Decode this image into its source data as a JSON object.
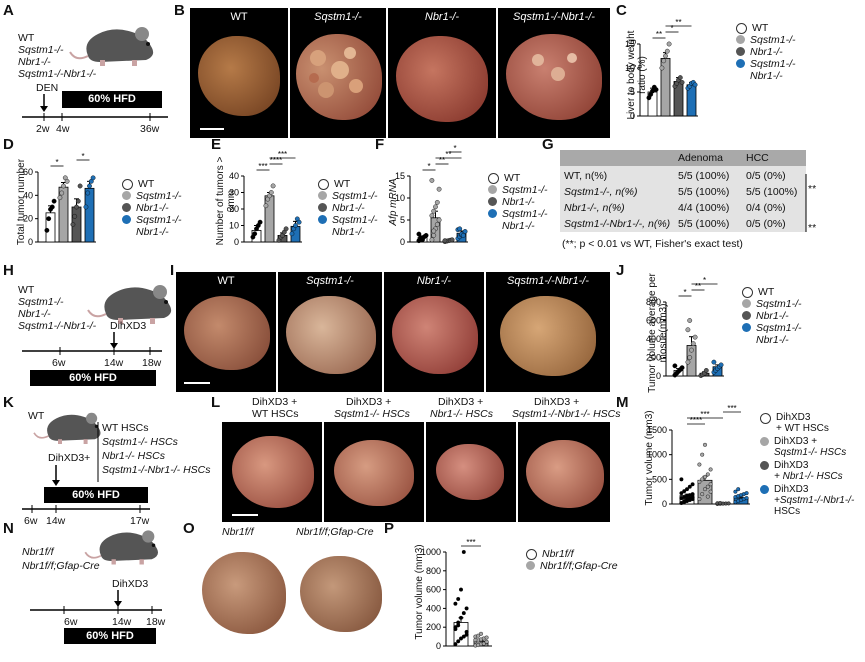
{
  "panel_labels": [
    "A",
    "B",
    "C",
    "D",
    "E",
    "F",
    "G",
    "H",
    "I",
    "J",
    "K",
    "L",
    "M",
    "N",
    "O",
    "P"
  ],
  "colors": {
    "wt": "#ffffff",
    "sqstm1": "#a6a6a6",
    "nbr1": "#555555",
    "dko": "#1e6fb5",
    "table_header": "#a9a9a9",
    "table_body": "#e3e3e3"
  },
  "genotypes": [
    "WT",
    "Sqstm1",
    "Nbr1",
    "Sqstm1Nbr1"
  ],
  "A": {
    "labels": [
      "WT",
      "Sqstm1-/-",
      "Nbr1-/-",
      "Sqstm1-/-Nbr1-/-"
    ],
    "treatment": "DEN",
    "diet": "60% HFD",
    "ticks": [
      "2w",
      "4w",
      "36w"
    ]
  },
  "B": {
    "captions": [
      "WT",
      "Sqstm1-/-",
      "Nbr1-/-",
      "Sqstm1-/-Nbr1-/-"
    ]
  },
  "H": {
    "labels": [
      "WT",
      "Sqstm1-/-",
      "Nbr1-/-",
      "Sqstm1-/-Nbr1-/-"
    ],
    "treatment": "DihXD3",
    "diet": "60% HFD",
    "ticks": [
      "6w",
      "14w",
      "18w"
    ]
  },
  "I": {
    "captions": [
      "WT",
      "Sqstm1-/-",
      "Nbr1-/-",
      "Sqstm1-/-Nbr1-/-"
    ]
  },
  "K": {
    "labels": [
      "WT"
    ],
    "injection": "DihXD3+",
    "hscs": [
      "WT HSCs",
      "Sqstm1-/- HSCs",
      "Nbr1-/- HSCs",
      "Sqstm1-/-Nbr1-/- HSCs"
    ],
    "diet": "60% HFD",
    "ticks": [
      "6w",
      "14w",
      "17w"
    ]
  },
  "L": {
    "captions": [
      [
        "DihXD3 +",
        "WT HSCs"
      ],
      [
        "DihXD3 +",
        "Sqstm1-/- HSCs"
      ],
      [
        "DihXD3 +",
        "Nbr1-/- HSCs"
      ],
      [
        "DihXD3 +",
        "Sqstm1-/-Nbr1-/- HSCs"
      ]
    ]
  },
  "N": {
    "labels": [
      "Nbr1f/f",
      "Nbr1f/f;Gfap-Cre"
    ],
    "treatment": "DihXD3",
    "diet": "60% HFD",
    "ticks": [
      "6w",
      "14w",
      "18w"
    ]
  },
  "O": {
    "captions": [
      "Nbr1f/f",
      "Nbr1f/f;Gfap-Cre"
    ]
  },
  "legend_basic": [
    "WT",
    "Sqstm1-/-",
    "Nbr1-/-",
    "Sqstm1-/-",
    "Nbr1-/-"
  ],
  "legend_M": [
    [
      "DihXD3",
      "+ WT HSCs"
    ],
    [
      "DihXD3 +",
      "Sqstm1-/- HSCs"
    ],
    [
      "DihXD3",
      "+ Nbr1-/- HSCs"
    ],
    [
      "DihXD3",
      "+Sqstm1-/-Nbr1-/-",
      "HSCs"
    ]
  ],
  "legend_P": [
    "Nbr1f/f",
    "Nbr1f/f;Gfap-Cre"
  ],
  "G": {
    "columns": [
      "",
      "Adenoma",
      "HCC"
    ],
    "rows": [
      [
        "WT, n(%)",
        "5/5 (100%)",
        "0/5 (0%)"
      ],
      [
        "Sqstm1-/-, n(%)",
        "5/5 (100%)",
        "5/5 (100%)"
      ],
      [
        "Nbr1-/-, n(%)",
        "4/4 (100%)",
        "0/4 (0%)"
      ],
      [
        "Sqstm1-/-Nbr1-/-, n(%)",
        "5/5 (100%)",
        "0/5 (0%)"
      ]
    ],
    "significance": [
      "**",
      "**"
    ],
    "footnote": "(**; p < 0.01 vs WT, Fisher's exact test)"
  },
  "chart_data": [
    {
      "panel": "C",
      "type": "bar",
      "categories": [
        "WT",
        "Sqstm1-/-",
        "Nbr1-/-",
        "Sqstm1-/-Nbr1-/-"
      ],
      "values": [
        5.0,
        12.0,
        7.2,
        6.5
      ],
      "errors": [
        0.8,
        1.2,
        0.8,
        0.5
      ],
      "points": [
        [
          3.8,
          4.5,
          5.2,
          6.0,
          5.5
        ],
        [
          10.0,
          11.5,
          12.5,
          13.5,
          15.0
        ],
        [
          6.2,
          6.8,
          7.5,
          8.0,
          7.0
        ],
        [
          5.8,
          6.2,
          6.8,
          7.0,
          6.5
        ]
      ],
      "ylabel": "Liver to body weight ratio (%)",
      "ylim": [
        0,
        15
      ],
      "yticks": [
        0,
        5,
        10,
        15
      ],
      "sig": [
        {
          "a": 0,
          "b": 1,
          "l": "**"
        },
        {
          "a": 1,
          "b": 2,
          "l": "*"
        },
        {
          "a": 1,
          "b": 3,
          "l": "**"
        }
      ]
    },
    {
      "panel": "D",
      "type": "bar",
      "categories": [
        "WT",
        "Sqstm1-/-",
        "Nbr1-/-",
        "Sqstm1-/-Nbr1-/-"
      ],
      "values": [
        25,
        47,
        30,
        46
      ],
      "errors": [
        6,
        4,
        7,
        6
      ],
      "points": [
        [
          10,
          20,
          28,
          30,
          35
        ],
        [
          38,
          42,
          48,
          55,
          52
        ],
        [
          15,
          22,
          30,
          35,
          48
        ],
        [
          30,
          42,
          48,
          52,
          55
        ]
      ],
      "ylabel": "Total tumor number",
      "ylim": [
        0,
        60
      ],
      "yticks": [
        0,
        20,
        40,
        60
      ],
      "sig": [
        {
          "a": 0,
          "b": 1,
          "l": "*"
        },
        {
          "a": 2,
          "b": 3,
          "l": "*"
        }
      ]
    },
    {
      "panel": "E",
      "type": "bar",
      "categories": [
        "WT",
        "Sqstm1-/-",
        "Nbr1-/-",
        "Sqstm1-/-Nbr1-/-"
      ],
      "values": [
        7,
        28,
        4,
        9.5
      ],
      "errors": [
        3,
        2,
        1.5,
        3
      ],
      "points": [
        [
          3,
          5,
          8,
          10,
          12
        ],
        [
          22,
          26,
          28,
          30,
          34
        ],
        [
          1,
          3,
          4,
          6,
          8
        ],
        [
          5,
          8,
          10,
          14,
          12
        ]
      ],
      "ylabel": "Number of tumors > 3mm",
      "ylim": [
        0,
        40
      ],
      "yticks": [
        0,
        10,
        20,
        30,
        40
      ],
      "sig": [
        {
          "a": 0,
          "b": 1,
          "l": "***"
        },
        {
          "a": 1,
          "b": 2,
          "l": "****"
        },
        {
          "a": 1,
          "b": 3,
          "l": "***"
        }
      ]
    },
    {
      "panel": "F",
      "type": "bar",
      "categories": [
        "WT",
        "Sqstm1-/-",
        "Nbr1-/-",
        "Sqstm1-/-Nbr1-/-"
      ],
      "values": [
        1.0,
        5.5,
        0.3,
        2.0
      ],
      "errors": [
        0.3,
        1.5,
        0.1,
        0.5
      ],
      "points": [
        [
          0.3,
          0.6,
          0.9,
          1.2,
          1.5,
          1.8,
          1.0,
          0.5
        ],
        [
          0.5,
          1.5,
          3,
          4,
          5,
          6,
          7,
          8,
          9,
          12,
          14,
          2.5
        ],
        [
          0.1,
          0.2,
          0.3,
          0.4,
          0.5,
          0.3
        ],
        [
          0.8,
          1.2,
          1.6,
          2.0,
          2.4,
          2.8,
          3.0,
          1.8,
          1.5
        ]
      ],
      "ylabel": "Afp mRNA",
      "ylim": [
        0,
        15
      ],
      "yticks": [
        0,
        5,
        10,
        15
      ],
      "sig": [
        {
          "a": 0,
          "b": 1,
          "l": "*"
        },
        {
          "a": 1,
          "b": 2,
          "l": "**"
        },
        {
          "a": 1,
          "b": 3,
          "l": "**"
        },
        {
          "a": 2,
          "b": 3,
          "l": "*"
        }
      ]
    },
    {
      "panel": "J",
      "type": "bar",
      "categories": [
        "WT",
        "Sqstm1-/-",
        "Nbr1-/-",
        "Sqstm1-/-Nbr1-/-"
      ],
      "values": [
        60,
        330,
        30,
        100
      ],
      "errors": [
        20,
        95,
        15,
        20
      ],
      "points": [
        [
          10,
          30,
          50,
          70,
          90,
          110
        ],
        [
          150,
          200,
          280,
          350,
          420,
          500,
          600
        ],
        [
          5,
          15,
          30,
          60
        ],
        [
          40,
          60,
          80,
          100,
          120,
          150
        ]
      ],
      "ylabel": "Tumor volume average per mosue(mm3)",
      "ylim": [
        0,
        800
      ],
      "yticks": [
        0,
        200,
        400,
        600,
        800
      ],
      "sig": [
        {
          "a": 0,
          "b": 1,
          "l": "*"
        },
        {
          "a": 1,
          "b": 2,
          "l": "**"
        },
        {
          "a": 1,
          "b": 3,
          "l": "*"
        }
      ]
    },
    {
      "panel": "M",
      "type": "bar",
      "categories": [
        "DihXD3 + WT HSCs",
        "DihXD3 + Sqstm1-/- HSCs",
        "DihXD3 + Nbr1-/- HSCs",
        "DihXD3 + Sqstm1-/-Nbr1-/- HSCs"
      ],
      "values": [
        170,
        480,
        10,
        120
      ],
      "errors": [
        30,
        80,
        5,
        20
      ],
      "points": [
        [
          20,
          40,
          60,
          80,
          100,
          120,
          140,
          160,
          180,
          200,
          220,
          260,
          300,
          350,
          400,
          500,
          60,
          90,
          110,
          130
        ],
        [
          100,
          200,
          300,
          350,
          400,
          450,
          500,
          550,
          600,
          700,
          800,
          1000,
          1200,
          150,
          250
        ],
        [
          2,
          5,
          8,
          10,
          12,
          15,
          20
        ],
        [
          40,
          60,
          80,
          100,
          120,
          140,
          160,
          180,
          200,
          220,
          250,
          300
        ]
      ],
      "ylabel": "Tumor volume (mm3)",
      "ylim": [
        0,
        1500
      ],
      "yticks": [
        0,
        500,
        1000,
        1500
      ],
      "sig": [
        {
          "a": 0,
          "b": 1,
          "l": "****"
        },
        {
          "a": 0,
          "b": 2,
          "l": "***"
        },
        {
          "a": 2,
          "b": 3,
          "l": "***"
        }
      ]
    },
    {
      "panel": "P",
      "type": "bar",
      "categories": [
        "Nbr1f/f",
        "Nbr1f/f;Gfap-Cre"
      ],
      "values": [
        250,
        50
      ],
      "errors": [
        50,
        10
      ],
      "points": [
        [
          20,
          50,
          80,
          100,
          150,
          200,
          250,
          300,
          350,
          400,
          450,
          500,
          600,
          1000,
          120,
          180,
          220
        ],
        [
          5,
          10,
          20,
          30,
          40,
          50,
          60,
          70,
          80,
          90,
          100,
          110,
          130,
          25,
          45,
          65
        ]
      ],
      "ylabel": "Tumor volume (mm3)",
      "ylim": [
        0,
        1000
      ],
      "yticks": [
        0,
        200,
        400,
        600,
        800,
        1000
      ],
      "sig": [
        {
          "a": 0,
          "b": 1,
          "l": "***"
        }
      ]
    }
  ]
}
